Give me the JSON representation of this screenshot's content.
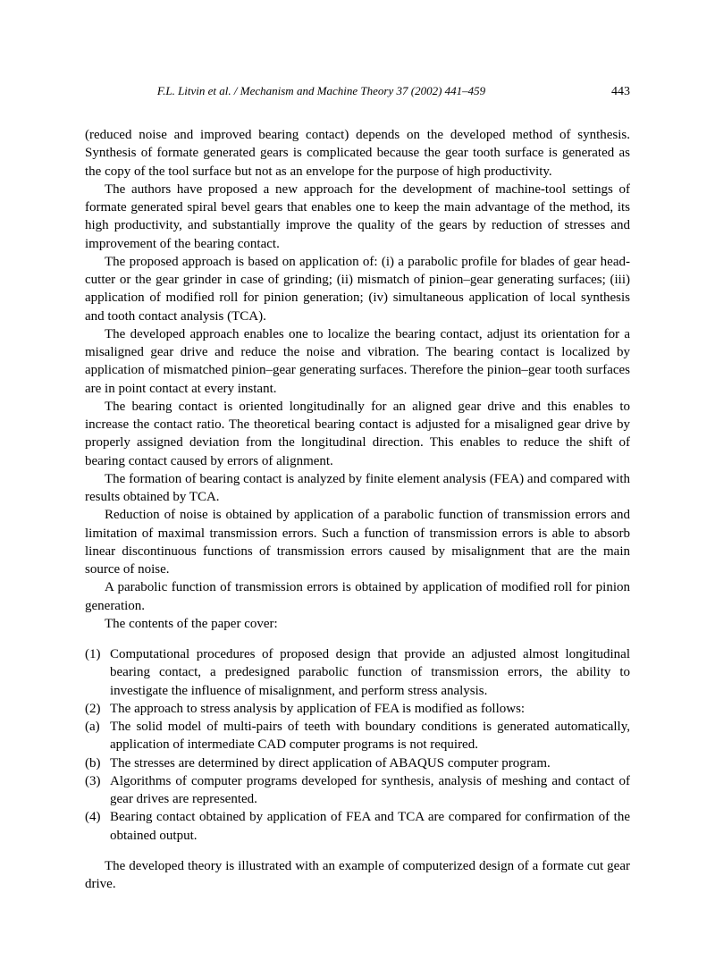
{
  "header": {
    "citation": "F.L. Litvin et al. / Mechanism and Machine Theory 37 (2002) 441–459",
    "pageNumber": "443"
  },
  "paragraphs": {
    "p1": "(reduced noise and improved bearing contact) depends on the developed method of synthesis. Synthesis of formate generated gears is complicated because the gear tooth surface is generated as the copy of the tool surface but not as an envelope for the purpose of high productivity.",
    "p2": "The authors have proposed a new approach for the development of machine-tool settings of formate generated spiral bevel gears that enables one to keep the main advantage of the method, its high productivity, and substantially improve the quality of the gears by reduction of stresses and improvement of the bearing contact.",
    "p3": "The proposed approach is based on application of: (i) a parabolic profile for blades of gear head-cutter or the gear grinder in case of grinding; (ii) mismatch of pinion–gear generating surfaces; (iii) application of modified roll for pinion generation; (iv) simultaneous application of local synthesis and tooth contact analysis (TCA).",
    "p4": "The developed approach enables one to localize the bearing contact, adjust its orientation for a misaligned gear drive and reduce the noise and vibration. The bearing contact is localized by application of mismatched pinion–gear generating surfaces. Therefore the pinion–gear tooth surfaces are in point contact at every instant.",
    "p5": "The bearing contact is oriented longitudinally for an aligned gear drive and this enables to increase the contact ratio. The theoretical bearing contact is adjusted for a misaligned gear drive by properly assigned deviation from the longitudinal direction. This enables to reduce the shift of bearing contact caused by errors of alignment.",
    "p6": "The formation of bearing contact is analyzed by finite element analysis (FEA) and compared with results obtained by TCA.",
    "p7": "Reduction of noise is obtained by application of a parabolic function of transmission errors and limitation of maximal transmission errors. Such a function of transmission errors is able to absorb linear discontinuous functions of transmission errors caused by misalignment that are the main source of noise.",
    "p8": "A parabolic function of transmission errors is obtained by application of modified roll for pinion generation.",
    "p9": "The contents of the paper cover:",
    "p10": "The developed theory is illustrated with an example of computerized design of a formate cut gear drive."
  },
  "list": {
    "item1": {
      "marker": "(1)",
      "text": "Computational procedures of proposed design that provide an adjusted almost longitudinal bearing contact, a predesigned parabolic function of transmission errors, the ability to investigate the influence of misalignment, and perform stress analysis."
    },
    "item2": {
      "marker": "(2)",
      "text": "The approach to stress analysis by application of FEA is modified as follows:"
    },
    "item2a": {
      "marker": "(a)",
      "text": "The solid model of multi-pairs of teeth with boundary conditions is generated automatically, application of intermediate CAD computer programs is not required."
    },
    "item2b": {
      "marker": "(b)",
      "text": "The stresses are determined by direct application of ABAQUS computer program."
    },
    "item3": {
      "marker": "(3)",
      "text": "Algorithms of computer programs developed for synthesis, analysis of meshing and contact of gear drives are represented."
    },
    "item4": {
      "marker": "(4)",
      "text": "Bearing contact obtained by application of FEA and TCA are compared for confirmation of the obtained output."
    }
  },
  "styling": {
    "backgroundColor": "#ffffff",
    "textColor": "#000000",
    "fontFamily": "Times New Roman",
    "bodyFontSize": 15,
    "headerFontSize": 13,
    "lineHeight": 1.35,
    "pageWidth": 800,
    "pageHeight": 1093
  }
}
